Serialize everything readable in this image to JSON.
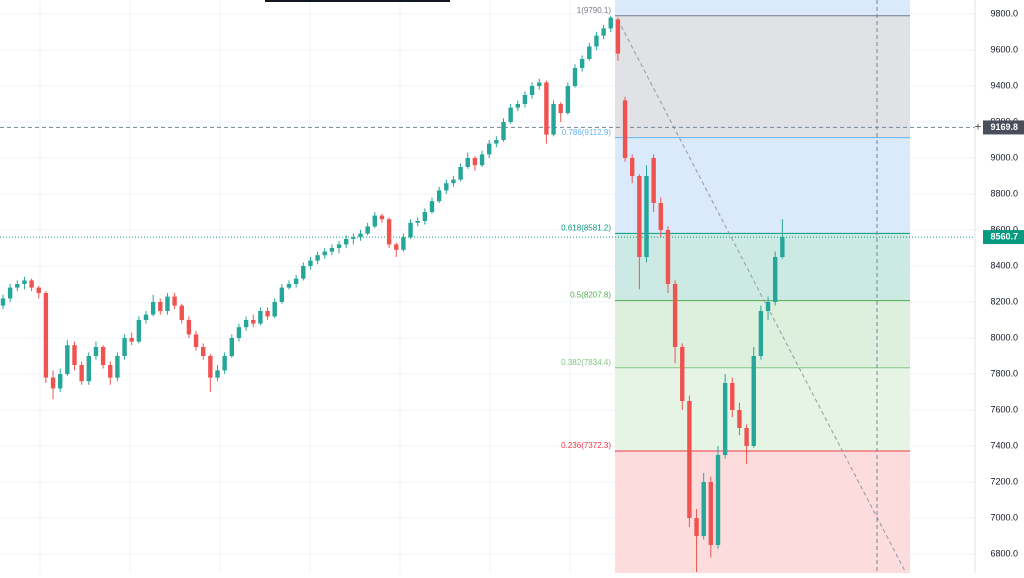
{
  "chart_data": {
    "type": "candlestick",
    "ylim": [
      6694.4,
      9877.8
    ],
    "yticks": [
      {
        "value": 6800,
        "label": "6800.0"
      },
      {
        "value": 7000,
        "label": "7000.0"
      },
      {
        "value": 7200,
        "label": "7200.0"
      },
      {
        "value": 7400,
        "label": "7400.0"
      },
      {
        "value": 7600,
        "label": "7600.0"
      },
      {
        "value": 7800,
        "label": "7800.0"
      },
      {
        "value": 8000,
        "label": "8000.0"
      },
      {
        "value": 8200,
        "label": "8200.0"
      },
      {
        "value": 8400,
        "label": "8400.0"
      },
      {
        "value": 8600,
        "label": "8600.0"
      },
      {
        "value": 8800,
        "label": "8800.0"
      },
      {
        "value": 9000,
        "label": "9000.0"
      },
      {
        "value": 9200,
        "label": "9200.0"
      },
      {
        "value": 9400,
        "label": "9400.0"
      },
      {
        "value": 9600,
        "label": "9600.0"
      },
      {
        "value": 9800,
        "label": "9800.0"
      }
    ],
    "grid": true,
    "up_color": "#26a69a",
    "down_color": "#ef5350",
    "candles": [
      [
        8180,
        8240,
        8160,
        8220
      ],
      [
        8220,
        8300,
        8200,
        8280
      ],
      [
        8280,
        8320,
        8260,
        8300
      ],
      [
        8300,
        8340,
        8270,
        8320
      ],
      [
        8320,
        8330,
        8260,
        8280
      ],
      [
        8280,
        8290,
        8220,
        8250
      ],
      [
        8250,
        8260,
        7750,
        7780
      ],
      [
        7780,
        7820,
        7660,
        7720
      ],
      [
        7720,
        7830,
        7700,
        7800
      ],
      [
        7800,
        7990,
        7790,
        7960
      ],
      [
        7960,
        7980,
        7820,
        7850
      ],
      [
        7850,
        7870,
        7740,
        7760
      ],
      [
        7760,
        7920,
        7740,
        7900
      ],
      [
        7900,
        7980,
        7880,
        7950
      ],
      [
        7950,
        7960,
        7830,
        7850
      ],
      [
        7850,
        7870,
        7740,
        7780
      ],
      [
        7780,
        7920,
        7760,
        7900
      ],
      [
        7900,
        8020,
        7880,
        8000
      ],
      [
        8000,
        8030,
        7960,
        7980
      ],
      [
        7980,
        8120,
        7970,
        8100
      ],
      [
        8100,
        8150,
        8080,
        8130
      ],
      [
        8130,
        8240,
        8120,
        8200
      ],
      [
        8200,
        8220,
        8130,
        8150
      ],
      [
        8150,
        8250,
        8130,
        8230
      ],
      [
        8230,
        8250,
        8160,
        8180
      ],
      [
        8180,
        8190,
        8080,
        8100
      ],
      [
        8100,
        8120,
        8000,
        8020
      ],
      [
        8020,
        8040,
        7930,
        7950
      ],
      [
        7950,
        7970,
        7880,
        7900
      ],
      [
        7900,
        7910,
        7700,
        7780
      ],
      [
        7780,
        7850,
        7760,
        7820
      ],
      [
        7820,
        7920,
        7800,
        7900
      ],
      [
        7900,
        8020,
        7890,
        8000
      ],
      [
        8000,
        8080,
        7980,
        8060
      ],
      [
        8060,
        8120,
        8040,
        8100
      ],
      [
        8100,
        8130,
        8060,
        8080
      ],
      [
        8080,
        8170,
        8070,
        8150
      ],
      [
        8150,
        8170,
        8100,
        8120
      ],
      [
        8120,
        8220,
        8110,
        8200
      ],
      [
        8200,
        8300,
        8190,
        8280
      ],
      [
        8280,
        8320,
        8270,
        8300
      ],
      [
        8300,
        8350,
        8280,
        8330
      ],
      [
        8330,
        8420,
        8320,
        8400
      ],
      [
        8400,
        8450,
        8380,
        8430
      ],
      [
        8430,
        8480,
        8410,
        8460
      ],
      [
        8460,
        8500,
        8440,
        8480
      ],
      [
        8480,
        8520,
        8460,
        8500
      ],
      [
        8500,
        8540,
        8470,
        8520
      ],
      [
        8520,
        8570,
        8500,
        8550
      ],
      [
        8550,
        8580,
        8520,
        8560
      ],
      [
        8560,
        8600,
        8540,
        8580
      ],
      [
        8580,
        8640,
        8570,
        8620
      ],
      [
        8620,
        8700,
        8610,
        8680
      ],
      [
        8680,
        8690,
        8640,
        8660
      ],
      [
        8660,
        8670,
        8500,
        8520
      ],
      [
        8520,
        8530,
        8450,
        8490
      ],
      [
        8490,
        8580,
        8480,
        8560
      ],
      [
        8560,
        8660,
        8550,
        8640
      ],
      [
        8640,
        8670,
        8620,
        8650
      ],
      [
        8650,
        8720,
        8630,
        8700
      ],
      [
        8700,
        8780,
        8690,
        8760
      ],
      [
        8760,
        8840,
        8750,
        8820
      ],
      [
        8820,
        8880,
        8800,
        8860
      ],
      [
        8860,
        8900,
        8840,
        8880
      ],
      [
        8880,
        8970,
        8870,
        8950
      ],
      [
        8950,
        9030,
        8940,
        9000
      ],
      [
        9000,
        9010,
        8930,
        8960
      ],
      [
        8960,
        9040,
        8950,
        9020
      ],
      [
        9020,
        9100,
        9000,
        9080
      ],
      [
        9080,
        9120,
        9060,
        9100
      ],
      [
        9100,
        9220,
        9090,
        9200
      ],
      [
        9200,
        9300,
        9190,
        9280
      ],
      [
        9280,
        9320,
        9260,
        9300
      ],
      [
        9300,
        9370,
        9280,
        9350
      ],
      [
        9350,
        9420,
        9330,
        9400
      ],
      [
        9400,
        9440,
        9380,
        9420
      ],
      [
        9420,
        9430,
        9080,
        9130
      ],
      [
        9130,
        9320,
        9120,
        9300
      ],
      [
        9300,
        9310,
        9200,
        9250
      ],
      [
        9250,
        9420,
        9240,
        9400
      ],
      [
        9400,
        9520,
        9390,
        9500
      ],
      [
        9500,
        9570,
        9480,
        9550
      ],
      [
        9550,
        9640,
        9540,
        9620
      ],
      [
        9620,
        9700,
        9600,
        9680
      ],
      [
        9680,
        9740,
        9660,
        9720
      ],
      [
        9720,
        9790.1,
        9700,
        9780
      ],
      [
        9770,
        9780,
        9540,
        9580
      ],
      [
        9320,
        9340,
        8980,
        9000
      ],
      [
        9000,
        9020,
        8860,
        8900
      ],
      [
        8900,
        8910,
        8270,
        8450
      ],
      [
        8450,
        8960,
        8420,
        8900
      ],
      [
        9000,
        9020,
        8700,
        8750
      ],
      [
        8750,
        8780,
        8560,
        8600
      ],
      [
        8600,
        8620,
        8250,
        8300
      ],
      [
        8300,
        8320,
        7860,
        7950
      ],
      [
        7950,
        7970,
        7600,
        7650
      ],
      [
        7650,
        7680,
        6950,
        7000
      ],
      [
        7000,
        7050,
        6700,
        6900
      ],
      [
        6900,
        7250,
        6880,
        7200
      ],
      [
        7200,
        7230,
        6780,
        6850
      ],
      [
        6850,
        7400,
        6830,
        7350
      ],
      [
        7350,
        7800,
        7330,
        7750
      ],
      [
        7750,
        7780,
        7560,
        7600
      ],
      [
        7600,
        7640,
        7460,
        7500
      ],
      [
        7500,
        7520,
        7300,
        7400
      ],
      [
        7400,
        7950,
        7390,
        7900
      ],
      [
        7900,
        8180,
        7880,
        8150
      ],
      [
        8150,
        8230,
        8100,
        8200
      ],
      [
        8200,
        8480,
        8180,
        8450
      ],
      [
        8450,
        8660,
        8440,
        8560.7
      ]
    ],
    "fib_levels": [
      {
        "label": "1(9790.1)",
        "price": 9790.1,
        "color": "#787b86",
        "fill": "#e1e2e6"
      },
      {
        "label": "0.786(9112.9)",
        "price": 9112.9,
        "color": "#64b5f6",
        "fill": "#dbeafa"
      },
      {
        "label": "0.618(8581.2)",
        "price": 8581.2,
        "color": "#089981",
        "fill": "#cde9e3"
      },
      {
        "label": "0.5(8207.8)",
        "price": 8207.8,
        "color": "#4caf50",
        "fill": "#dcf0dd"
      },
      {
        "label": "0.382(7834.4)",
        "price": 7834.4,
        "color": "#81c784",
        "fill": "#e6f4e6"
      },
      {
        "label": "0.236(7372.3)",
        "price": 7372.3,
        "color": "#f23645",
        "fill": "#fcdcdc"
      }
    ],
    "crosshair_price": 9169.8,
    "last_price": 8560.7
  }
}
